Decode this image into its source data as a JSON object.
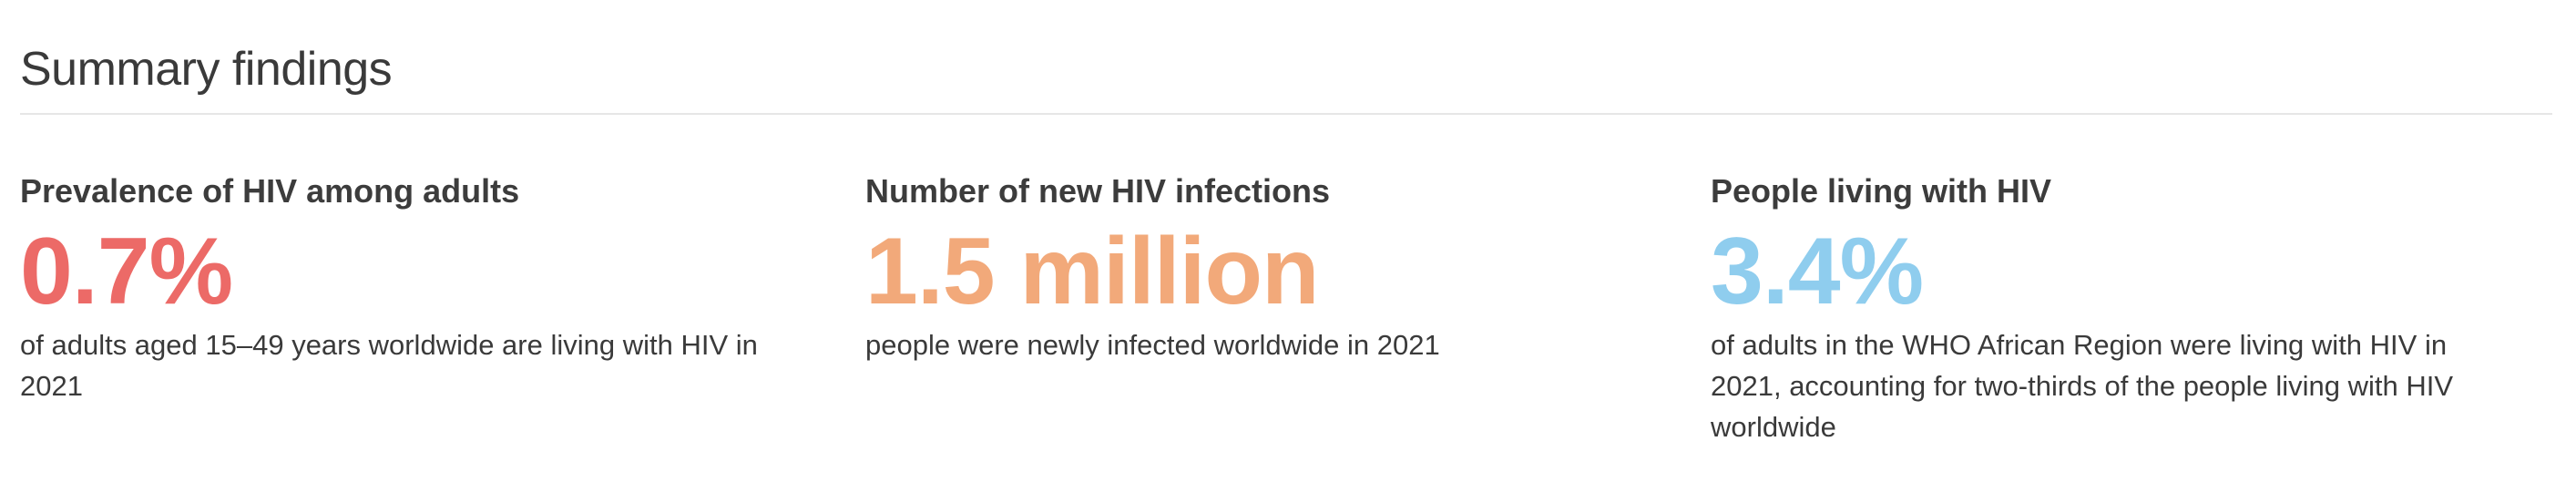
{
  "section": {
    "title": "Summary findings"
  },
  "cards": [
    {
      "title": "Prevalence of HIV among adults",
      "stat": "0.7%",
      "color": "#ec6a67",
      "description": "of adults aged 15–49 years worldwide are living with HIV in 2021"
    },
    {
      "title": "Number of new HIV infections",
      "stat": "1.5 million",
      "color": "#f2a97a",
      "description": "people were newly infected worldwide in 2021"
    },
    {
      "title": "People living with HIV",
      "stat": "3.4%",
      "color": "#8fcdee",
      "description": "of adults in the WHO African Region were living with HIV in 2021, accounting for two-thirds of the people living with HIV worldwide"
    }
  ]
}
